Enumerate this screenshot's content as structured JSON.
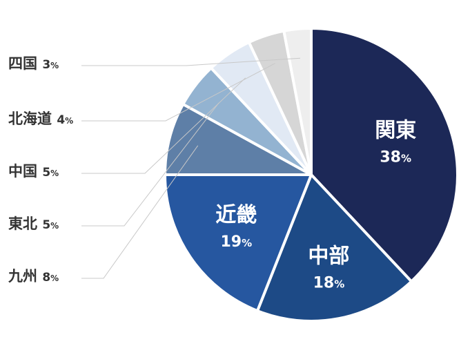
{
  "chart_data": {
    "type": "pie",
    "title": "",
    "unit": "%",
    "slices": [
      {
        "label": "関東",
        "value": 38,
        "value_label": "38",
        "color": "#1c2857",
        "text_position": "inside"
      },
      {
        "label": "中部",
        "value": 18,
        "value_label": "18",
        "color": "#1d4a86",
        "text_position": "inside"
      },
      {
        "label": "近畿",
        "value": 19,
        "value_label": "19",
        "color": "#2657a0",
        "text_position": "inside"
      },
      {
        "label": "九州",
        "value": 8,
        "value_label": "8",
        "color": "#5e7fa7",
        "text_position": "outside"
      },
      {
        "label": "東北",
        "value": 5,
        "value_label": "5",
        "color": "#93b3d1",
        "text_position": "outside"
      },
      {
        "label": "中国",
        "value": 5,
        "value_label": "5",
        "color": "#e1e9f4",
        "text_position": "outside"
      },
      {
        "label": "北海道",
        "value": 4,
        "value_label": "4",
        "color": "#d6d6d6",
        "text_position": "outside"
      },
      {
        "label": "四国",
        "value": 3,
        "value_label": "3",
        "color": "#eeeeee",
        "text_position": "outside"
      }
    ]
  }
}
